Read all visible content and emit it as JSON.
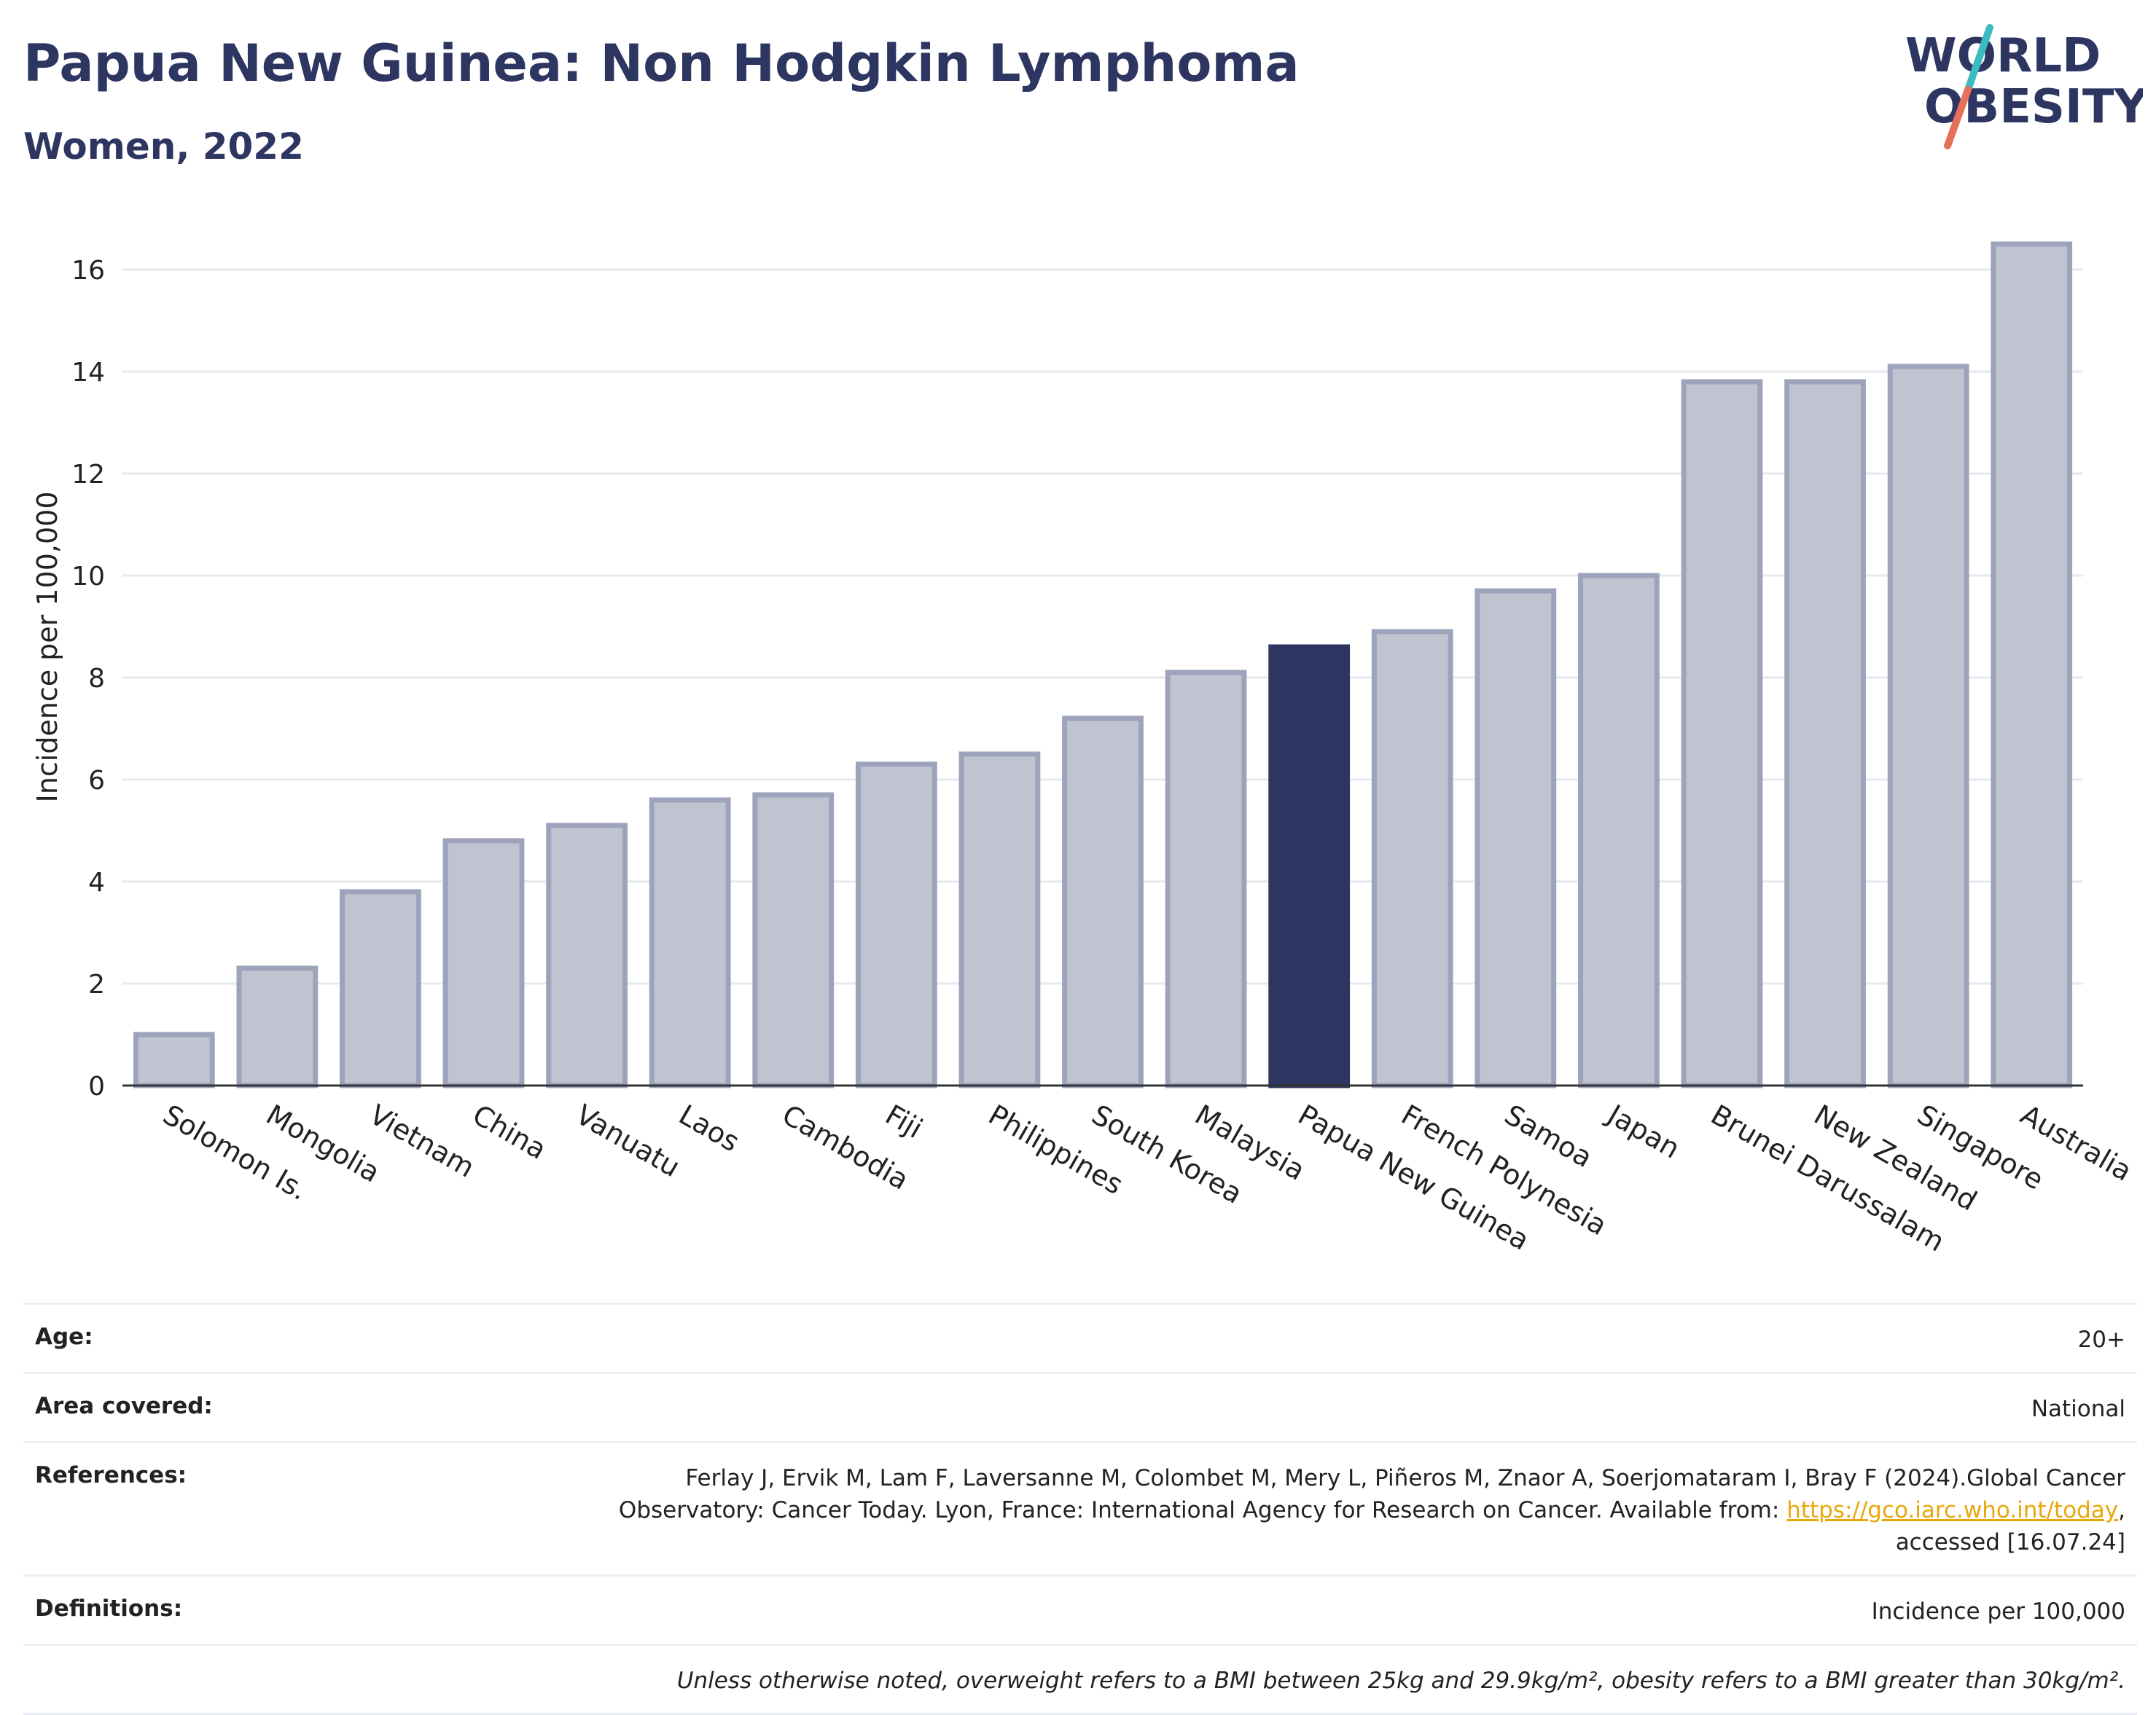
{
  "header": {
    "title": "Papua New Guinea: Non Hodgkin Lymphoma",
    "subtitle": "Women, 2022"
  },
  "logo": {
    "line1": "WORLD",
    "line2": "OBESITY",
    "colors": {
      "text": "#2d3561",
      "slash_teal": "#3bbcc0",
      "slash_coral": "#e8705a"
    }
  },
  "colors": {
    "bar_default": "#c0c3d0",
    "bar_default_stroke": "#9ea3bc",
    "bar_highlight": "#2d3561",
    "grid": "#e6e8ef",
    "axis": "#333333"
  },
  "chart_data": {
    "type": "bar",
    "title": "",
    "xlabel": "",
    "ylabel": "Incidence per 100,000",
    "ylim": [
      0,
      17
    ],
    "yticks": [
      0,
      2,
      4,
      6,
      8,
      10,
      12,
      14,
      16
    ],
    "grid": true,
    "highlight": "Papua New Guinea",
    "categories": [
      "Solomon Is.",
      "Mongolia",
      "Vietnam",
      "China",
      "Vanuatu",
      "Laos",
      "Cambodia",
      "Fiji",
      "Philippines",
      "South Korea",
      "Malaysia",
      "Papua New Guinea",
      "French Polynesia",
      "Samoa",
      "Japan",
      "Brunei Darussalam",
      "New Zealand",
      "Singapore",
      "Australia"
    ],
    "values": [
      1.0,
      2.3,
      3.8,
      4.8,
      5.1,
      5.6,
      5.7,
      6.3,
      6.5,
      7.2,
      8.1,
      8.6,
      8.9,
      9.7,
      10.0,
      13.8,
      13.8,
      14.1,
      16.5
    ]
  },
  "info": {
    "age": {
      "label": "Age:",
      "value": "20+"
    },
    "area": {
      "label": "Area covered:",
      "value": "National"
    },
    "references": {
      "label": "References:",
      "line1": "Ferlay J, Ervik M, Lam F, Laversanne M, Colombet M, Mery L, Piñeros M, Znaor A, Soerjomataram I, Bray F (2024).Global Cancer",
      "line2_prefix": "Observatory: Cancer Today. Lyon, France: International Agency for Research on Cancer. Available from: ",
      "link": "https://gco.iarc.who.int/today",
      "line2_suffix": ",",
      "line3": "accessed [16.07.24]"
    },
    "definitions": {
      "label": "Definitions:",
      "value": "Incidence per 100,000"
    },
    "note": "Unless otherwise noted, overweight refers to a BMI between 25kg and 29.9kg/m², obesity refers to a BMI greater than 30kg/m²."
  }
}
